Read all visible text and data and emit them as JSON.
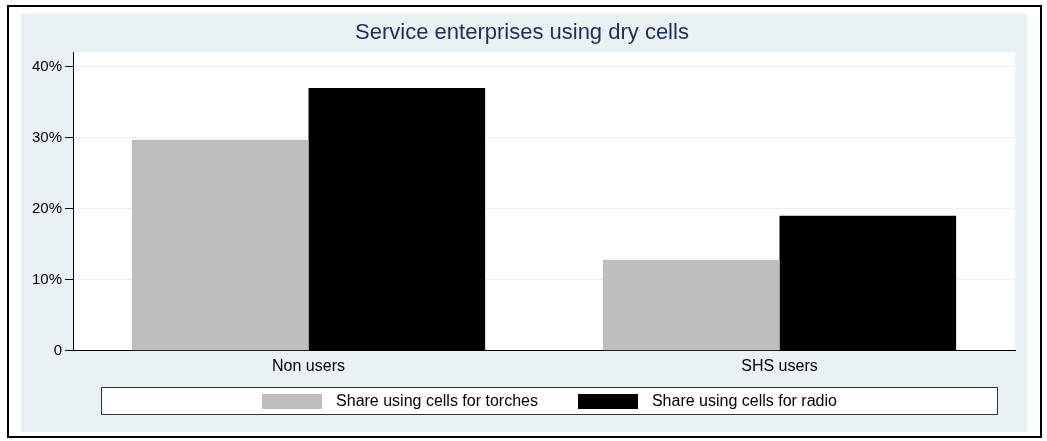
{
  "chart_data": {
    "type": "bar",
    "title": "Service enterprises using dry cells",
    "categories": [
      "Non users",
      "SHS users"
    ],
    "series": [
      {
        "name": "Share using cells for torches",
        "color": "#bebebe",
        "values": [
          29.7,
          12.8
        ]
      },
      {
        "name": "Share using cells for radio",
        "color": "#000000",
        "values": [
          37.0,
          19.0
        ]
      }
    ],
    "ylim": [
      0,
      42
    ],
    "yticks": [
      0,
      {
        "value": 10,
        "label": "10%"
      },
      {
        "value": 20,
        "label": "20%"
      },
      {
        "value": 30,
        "label": "30%"
      },
      {
        "value": 40,
        "label": "40%"
      }
    ],
    "grid": "y",
    "legend": "bottom"
  }
}
